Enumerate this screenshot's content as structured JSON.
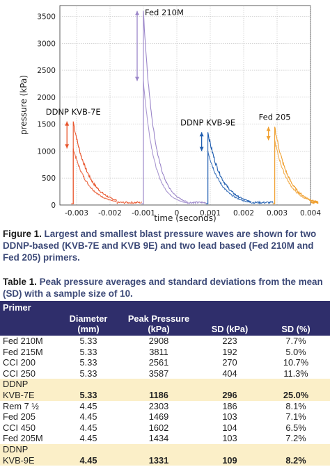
{
  "chart_data": {
    "type": "line",
    "xlabel": "time (seconds)",
    "ylabel": "pressure (kPa)",
    "xlim": [
      -0.0035,
      0.004
    ],
    "ylim": [
      0,
      3700
    ],
    "xticks": [
      "-0.003",
      "-0.002",
      "-0.001",
      "0",
      "0.001",
      "0.002",
      "0.003",
      "0.004"
    ],
    "yticks": [
      "0",
      "500",
      "1000",
      "1500",
      "2000",
      "2500",
      "3000",
      "3500"
    ],
    "grid": true,
    "annotations": [
      "DDNP KVB-7E",
      "Fed 210M",
      "DDNP KVB-9E",
      "Fed 205"
    ],
    "series": [
      {
        "name": "DDNP KVB-7E",
        "color": "#e8532a",
        "t0": -0.0031,
        "peak": 1550,
        "low": 1050,
        "decay": 0.00045
      },
      {
        "name": "Fed 210M",
        "color": "#9b86c9",
        "t0": -0.001,
        "peak": 3600,
        "low": 2300,
        "decay": 0.00032
      },
      {
        "name": "DDNP KVB-9E",
        "color": "#1e5db0",
        "t0": 0.00093,
        "peak": 1350,
        "low": 1000,
        "decay": 0.00042
      },
      {
        "name": "Fed 205",
        "color": "#f0a030",
        "t0": 0.00293,
        "peak": 1450,
        "low": 1200,
        "decay": 0.0004
      }
    ]
  },
  "figure_caption": {
    "label": "Figure 1.",
    "text": " Largest and smallest blast pressure waves are shown for two DDNP-based (KVB-7E and KVB 9E) and two lead based (Fed 210M and Fed 205) primers."
  },
  "table_caption": {
    "label": "Table 1.",
    "text": " Peak pressure averages and standard deviations from the mean (SD) with a sample size of 10."
  },
  "table": {
    "headers": [
      "Primer",
      "Diameter (mm)",
      "Peak Pressure (kPa)",
      "SD (kPa)",
      "SD (%)"
    ],
    "rows": [
      [
        "Fed 210M",
        "5.33",
        "2908",
        "223",
        "7.7%"
      ],
      [
        "Fed 215M",
        "5.33",
        "3811",
        "192",
        "5.0%"
      ],
      [
        "CCI 200",
        "5.33",
        "2561",
        "270",
        "10.7%"
      ],
      [
        "CCI 250",
        "5.33",
        "3587",
        "404",
        "11.3%"
      ],
      [
        "DDNP KVB-7E",
        "5.33",
        "1186",
        "296",
        "25.0%"
      ],
      [
        "Rem 7 ½",
        "4.45",
        "2303",
        "186",
        "8.1%"
      ],
      [
        "Fed 205",
        "4.45",
        "1469",
        "103",
        "7.1%"
      ],
      [
        "CCI 450",
        "4.45",
        "1602",
        "104",
        "6.5%"
      ],
      [
        "Fed 205M",
        "4.45",
        "1434",
        "103",
        "7.2%"
      ],
      [
        "DDNP KVB-9E",
        "4.45",
        "1331",
        "109",
        "8.2%"
      ]
    ]
  }
}
